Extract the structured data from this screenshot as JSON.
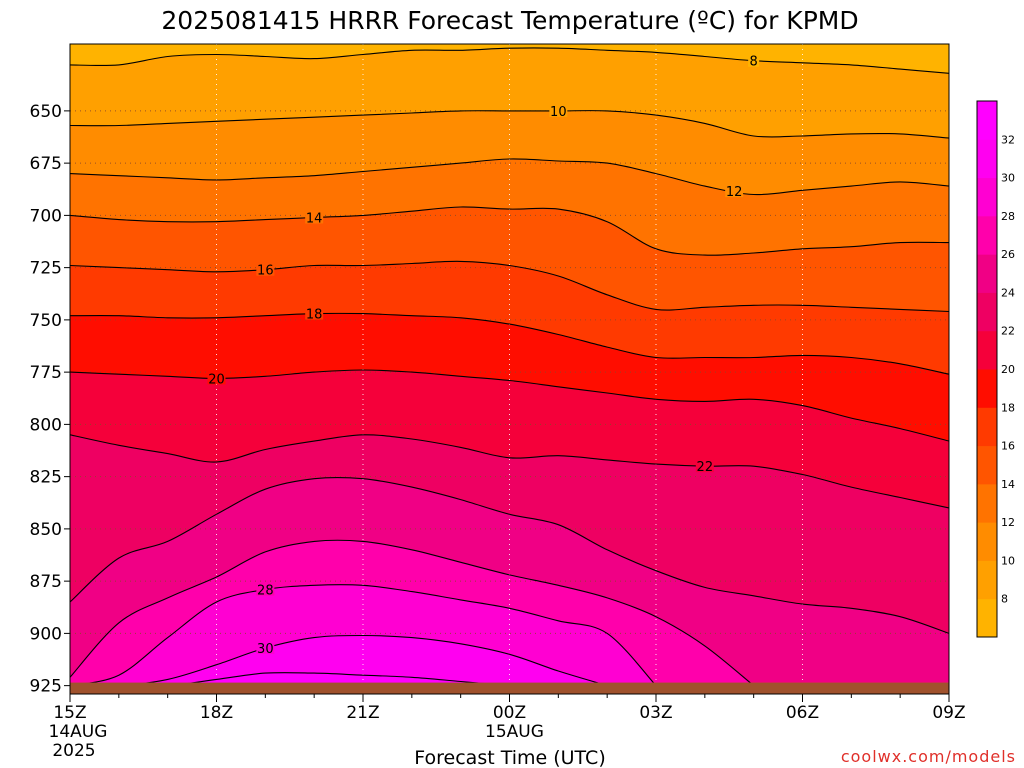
{
  "title": "2025081415 HRRR Forecast Temperature (ºC) for KPMD",
  "credit": "coolwx.com/models",
  "chart_data": {
    "type": "contour",
    "title": "2025081415 HRRR Forecast Temperature (ºC) for KPMD",
    "xlabel": "Forecast Time (UTC)",
    "ylabel": "",
    "x_hours": [
      0,
      1,
      2,
      3,
      4,
      5,
      6,
      7,
      8,
      9,
      10,
      11,
      12,
      13,
      14,
      15,
      16,
      17,
      18
    ],
    "x_ticks": [
      {
        "hour": 0,
        "label": "15Z",
        "date": "14AUG",
        "year": "2025"
      },
      {
        "hour": 3,
        "label": "18Z"
      },
      {
        "hour": 6,
        "label": "21Z"
      },
      {
        "hour": 9,
        "label": "00Z",
        "date": "15AUG"
      },
      {
        "hour": 12,
        "label": "03Z"
      },
      {
        "hour": 15,
        "label": "06Z"
      },
      {
        "hour": 18,
        "label": "09Z"
      }
    ],
    "y_ticks": [
      "650",
      "675",
      "700",
      "725",
      "750",
      "775",
      "800",
      "825",
      "850",
      "875",
      "900",
      "925"
    ],
    "y_range_hpa": [
      618,
      929
    ],
    "surface_pressure_hpa": 925,
    "colorbar": {
      "levels": [
        8,
        10,
        12,
        14,
        16,
        18,
        20,
        22,
        24,
        26,
        28,
        30,
        32
      ],
      "colors": [
        "#ffb300",
        "#ffa000",
        "#ff8c00",
        "#ff7300",
        "#ff5500",
        "#ff3a00",
        "#ff0d00",
        "#f5003a",
        "#ee0062",
        "#f00085",
        "#ff00ab",
        "#ff00d2",
        "#ff00f0",
        "#ff00ff"
      ]
    },
    "contours": [
      {
        "level": 8,
        "label": "8",
        "label_at_hour": 14,
        "pressure": [
          628,
          628,
          624,
          623,
          624,
          625,
          623,
          621,
          621,
          620,
          620,
          621,
          622,
          624,
          626,
          627,
          628,
          630,
          632
        ]
      },
      {
        "level": 10,
        "label": "10",
        "label_at_hour": 10,
        "pressure": [
          657,
          657,
          656,
          655,
          654,
          653,
          652,
          651,
          650,
          650,
          650,
          650,
          652,
          656,
          662,
          662,
          661,
          661,
          663
        ]
      },
      {
        "level": 12,
        "label": "12",
        "label_at_hour": 13.6,
        "pressure": [
          680,
          681,
          682,
          683,
          682,
          681,
          679,
          677,
          675,
          673,
          674,
          675,
          680,
          686,
          690,
          688,
          686,
          684,
          686
        ]
      },
      {
        "level": 14,
        "label": "14",
        "label_at_hour": 5,
        "pressure": [
          700,
          702,
          703,
          703,
          702,
          701,
          700,
          698,
          696,
          697,
          697,
          703,
          716,
          719,
          718,
          716,
          715,
          713,
          713
        ]
      },
      {
        "level": 16,
        "label": "16",
        "label_at_hour": 4,
        "pressure": [
          724,
          725,
          726,
          727,
          726,
          724,
          724,
          723,
          722,
          724,
          729,
          738,
          745,
          744,
          743,
          743,
          744,
          745,
          746
        ]
      },
      {
        "level": 18,
        "label": "18",
        "label_at_hour": 5,
        "pressure": [
          748,
          748,
          749,
          749,
          748,
          747,
          747,
          748,
          749,
          752,
          757,
          763,
          768,
          768,
          768,
          767,
          768,
          771,
          776
        ]
      },
      {
        "level": 20,
        "label": "20",
        "label_at_hour": 3,
        "pressure": [
          775,
          776,
          777,
          778,
          777,
          775,
          774,
          775,
          777,
          779,
          782,
          785,
          788,
          789,
          788,
          791,
          797,
          802,
          808
        ]
      },
      {
        "level": 22,
        "label": "22",
        "label_at_hour": 13,
        "pressure": [
          805,
          810,
          814,
          818,
          812,
          808,
          805,
          807,
          811,
          816,
          815,
          817,
          819,
          820,
          820,
          824,
          830,
          835,
          840
        ]
      },
      {
        "level": 24,
        "label": "",
        "label_at_hour": null,
        "pressure": [
          885,
          864,
          856,
          843,
          831,
          826,
          826,
          830,
          836,
          843,
          848,
          860,
          870,
          878,
          882,
          886,
          888,
          892,
          900
        ]
      },
      {
        "level": 26,
        "label": "",
        "label_at_hour": null,
        "pressure": [
          921,
          895,
          883,
          873,
          861,
          856,
          856,
          860,
          866,
          872,
          877,
          883,
          892,
          906,
          925
        ]
      },
      {
        "level": 28,
        "label": "28",
        "label_at_hour": 4,
        "pressure": [
          925,
          920,
          902,
          885,
          879,
          877,
          877,
          880,
          884,
          888,
          894,
          900,
          925
        ]
      },
      {
        "level": 30,
        "label": "30",
        "label_at_hour": 4,
        "pressure": [
          925,
          925,
          922,
          915,
          907,
          902,
          901,
          902,
          905,
          910,
          918,
          925
        ]
      },
      {
        "level": 32,
        "label": "",
        "label_at_hour": null,
        "pressure": [
          925,
          925,
          925,
          922,
          919,
          919,
          920,
          921,
          923,
          925
        ]
      }
    ]
  }
}
